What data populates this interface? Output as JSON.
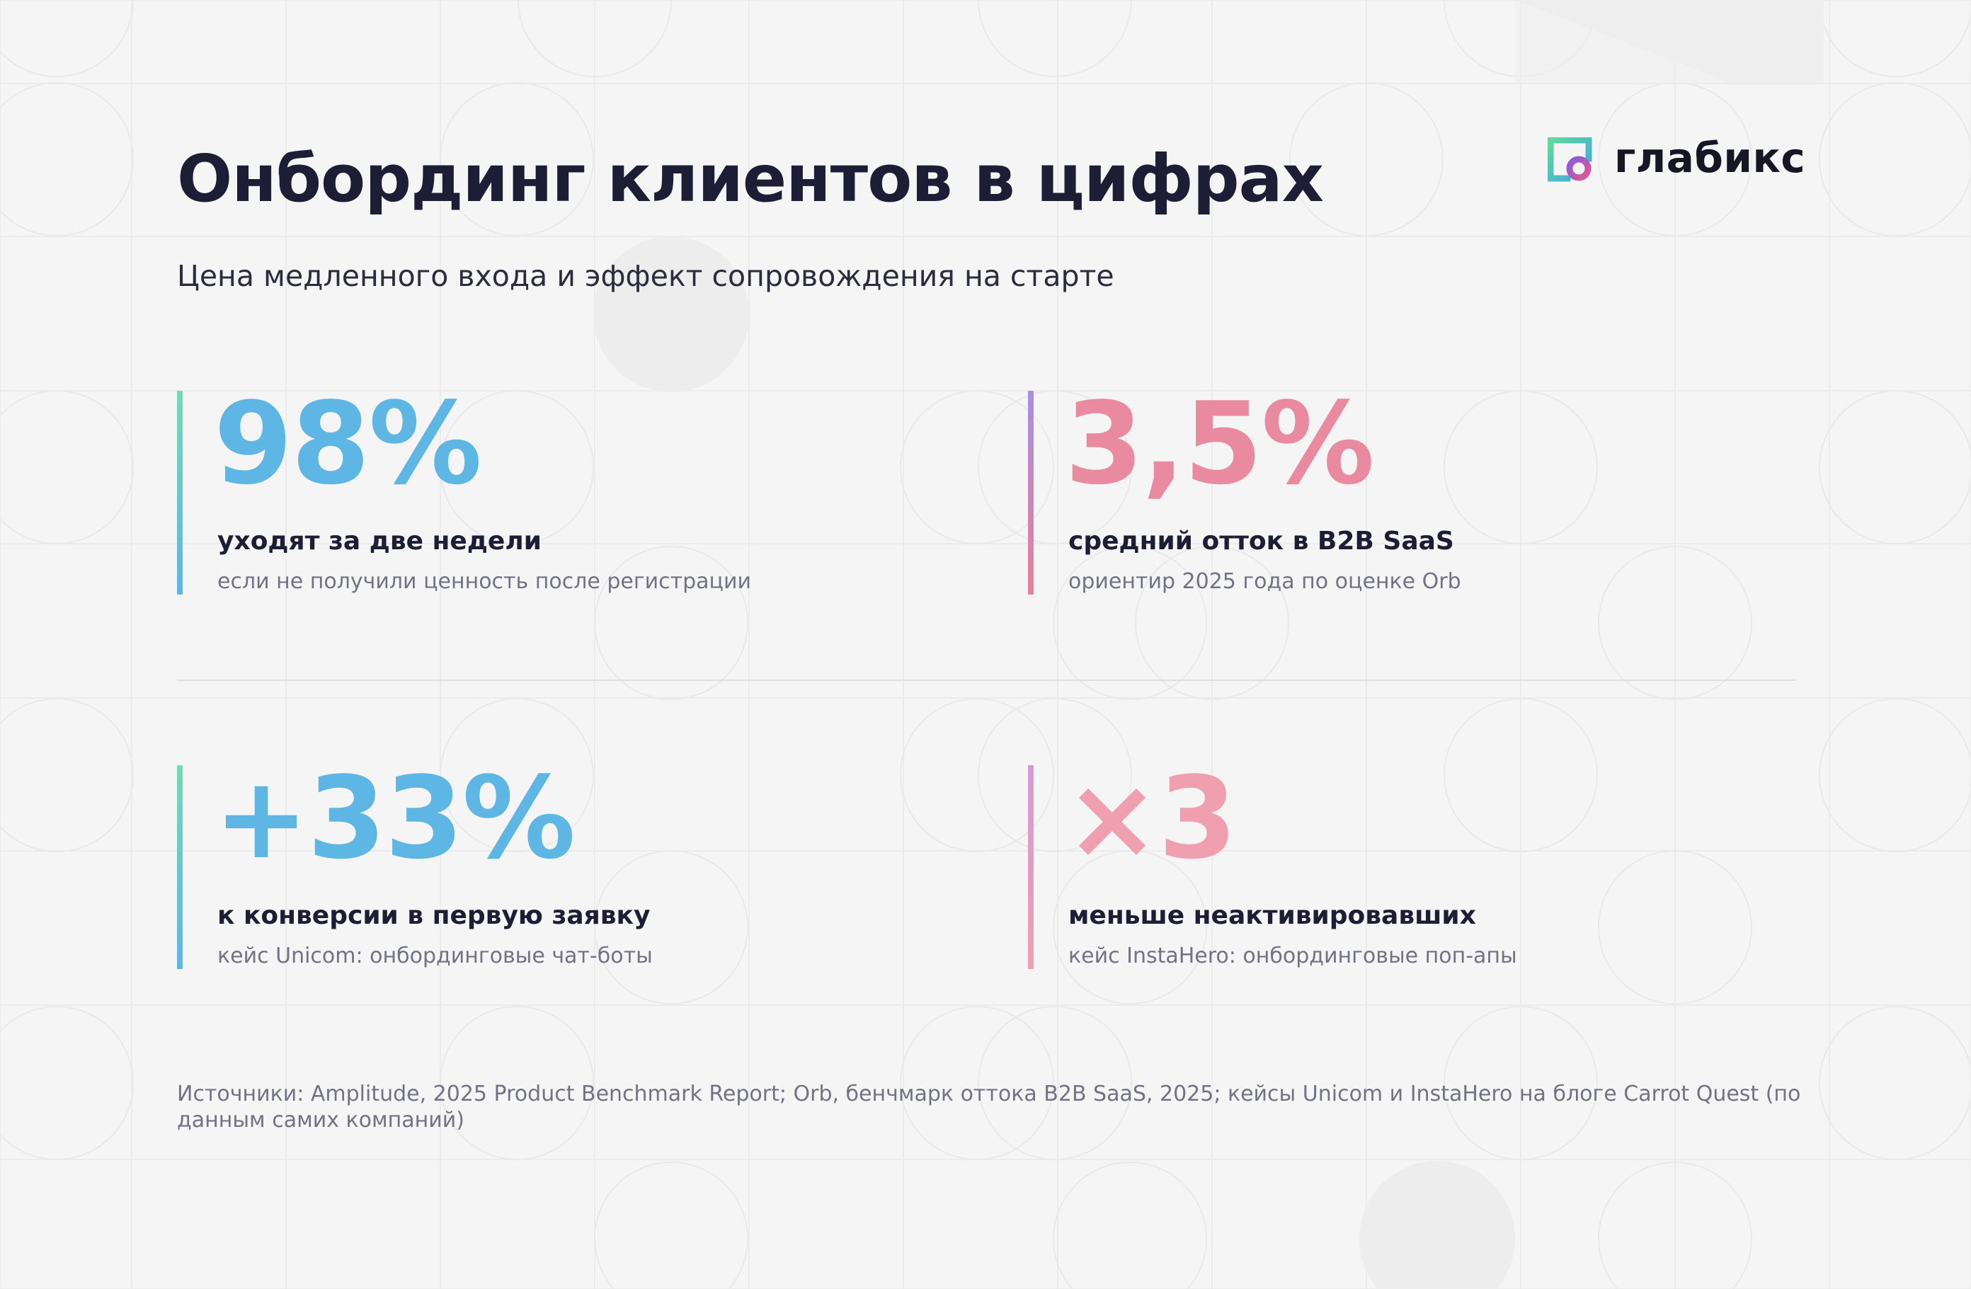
{
  "title": "Онбординг клиентов в цифрах",
  "subtitle": "Цена медленного входа и эффект сопровождения на старте",
  "brand": {
    "name": "глабикс",
    "icon": "glabix-logo-icon"
  },
  "stats": [
    {
      "value": "98%",
      "label": "уходят за две недели",
      "note": "если не получили ценность после регистрации",
      "color": "#5db6e3",
      "bar_colors": [
        "#6fdcb5",
        "#5db6e3"
      ]
    },
    {
      "value": "3,5%",
      "label": "средний отток в B2B SaaS",
      "note": "ориентир 2025 года по оценке Orb",
      "color": "#ea8aa0",
      "bar_colors": [
        "#a88ee0",
        "#ea7f98"
      ]
    },
    {
      "value": "+33%",
      "label": "к конверсии в первую заявку",
      "note": "кейс Unicom: онбординговые чат-боты",
      "color": "#5db6e3",
      "bar_colors": [
        "#6fdcb5",
        "#5db6e3"
      ]
    },
    {
      "value": "×3",
      "label": "меньше неактивировавших",
      "note": "кейс InstaHero: онбординговые поп-апы",
      "color": "#ef9fb0",
      "bar_colors": [
        "#d59ad6",
        "#ef9fb0"
      ]
    }
  ],
  "sources": "Источники: Amplitude, 2025 Product Benchmark Report; Orb, бенчмарк оттока B2B SaaS, 2025; кейсы Unicom и InstaHero на блоге Carrot Quest (по данным самих компаний)"
}
